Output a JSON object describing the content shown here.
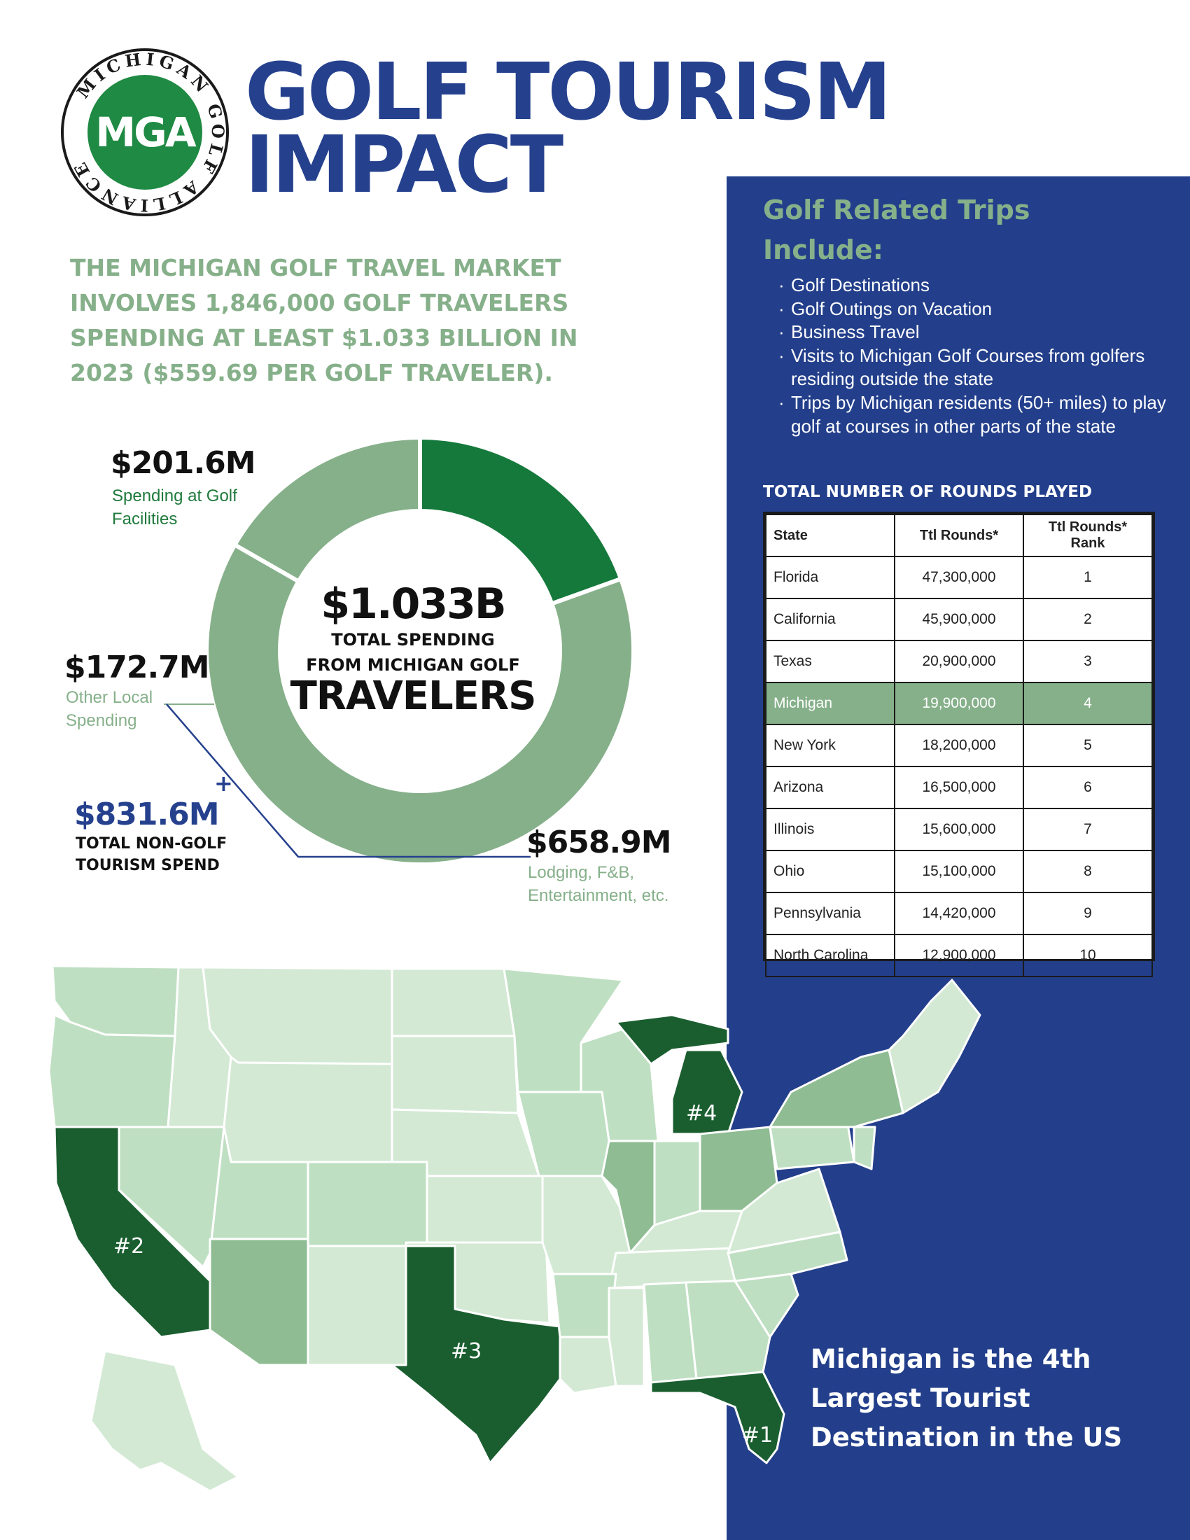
{
  "logo": {
    "ring_text": "MICHIGAN GOLF ALLIANCE",
    "mark": "MGA",
    "colors": {
      "green": "#1f8a43",
      "ring": "#1a1a1a"
    }
  },
  "title": {
    "line1": "GOLF TOURISM",
    "line2": "IMPACT"
  },
  "intro": "THE MICHIGAN GOLF TRAVEL MARKET INVOLVES 1,846,000 GOLF TRAVELERS SPENDING AT LEAST $1.033 BILLION IN 2023 ($559.69 PER GOLF TRAVELER).",
  "trips": {
    "title": "Golf Related Trips Include:",
    "items": [
      "Golf Destinations",
      "Golf Outings on Vacation",
      "Business Travel",
      "Visits to Michigan Golf Courses from golfers residing outside the state",
      "Trips by Michigan residents (50+ miles) to play golf at courses in other parts of the state"
    ]
  },
  "rounds": {
    "title": "TOTAL NUMBER OF ROUNDS PLAYED",
    "headers": [
      "State",
      "Ttl Rounds*",
      "Ttl Rounds* Rank"
    ],
    "rows": [
      [
        "Florida",
        "47,300,000",
        "1"
      ],
      [
        "California",
        "45,900,000",
        "2"
      ],
      [
        "Texas",
        "20,900,000",
        "3"
      ],
      [
        "Michigan",
        "19,900,000",
        "4"
      ],
      [
        "New York",
        "18,200,000",
        "5"
      ],
      [
        "Arizona",
        "16,500,000",
        "6"
      ],
      [
        "Illinois",
        "15,600,000",
        "7"
      ],
      [
        "Ohio",
        "15,100,000",
        "8"
      ],
      [
        "Pennsylvania",
        "14,420,000",
        "9"
      ],
      [
        "North Carolina",
        "12,900,000",
        "10"
      ]
    ],
    "highlight_row": 3
  },
  "chart_data": {
    "type": "pie",
    "style": "donut",
    "unit": "$M",
    "slices": [
      {
        "value": 201.6,
        "label": "$201.6M",
        "desc": "Spending at Golf Facilities",
        "color": "#15793c"
      },
      {
        "value": 658.9,
        "label": "$658.9M",
        "desc": "Lodging, F&B, Entertainment, etc.",
        "color": "#86b08a"
      },
      {
        "value": 172.7,
        "label": "$172.7M",
        "desc": "Other Local Spending",
        "color": "#86b08a"
      }
    ],
    "center": {
      "total": "$1.033B",
      "line1": "TOTAL SPENDING",
      "line2": "FROM  MICHIGAN GOLF",
      "line3": "TRAVELERS"
    }
  },
  "nongolf": {
    "plus": "+",
    "value": "$831.6M",
    "label": "TOTAL NON-GOLF TOURISM SPEND"
  },
  "map": {
    "ranks": [
      "#1",
      "#2",
      "#3",
      "#4"
    ],
    "colors": {
      "dark": "#1a5e30",
      "mid": "#8fbc93",
      "light": "#bfdfc2",
      "lighter": "#d3e9d4"
    }
  },
  "callout": "Michigan is the 4th Largest Tourist Destination in the US",
  "colors": {
    "blue": "#25418e",
    "panel": "#233f8b",
    "green": "#86b08a",
    "dark_green": "#15793c"
  }
}
